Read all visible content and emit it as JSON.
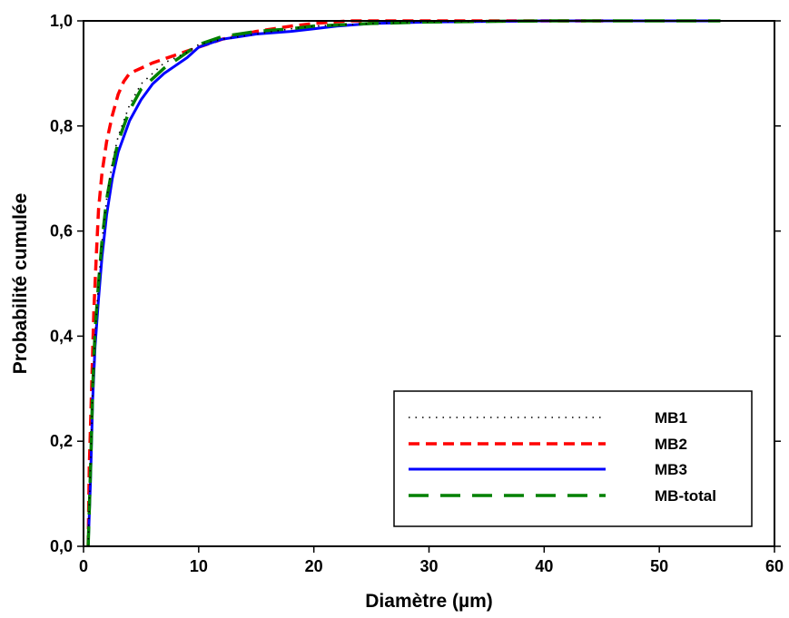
{
  "chart_data": {
    "type": "line",
    "title": "",
    "xlabel": "Diamètre (µm)",
    "ylabel": "Probabilité cumulée",
    "xlim": [
      0,
      60
    ],
    "ylim": [
      0,
      1.0
    ],
    "xticks": [
      0,
      10,
      20,
      30,
      40,
      50,
      60
    ],
    "yticks": [
      0,
      0.2,
      0.4,
      0.6,
      0.8,
      1.0
    ],
    "xtick_labels": [
      "0",
      "10",
      "20",
      "30",
      "40",
      "50",
      "60"
    ],
    "ytick_labels": [
      "0,0",
      "0,2",
      "0,4",
      "0,6",
      "0,8",
      "1,0"
    ],
    "grid": false,
    "legend_position": "bottom-right",
    "series": [
      {
        "name": "MB1",
        "color": "#000000",
        "style": "dotted",
        "x": [
          0.4,
          0.6,
          0.8,
          1.0,
          1.3,
          1.6,
          2.0,
          2.5,
          3.0,
          4.0,
          5.0,
          6.0,
          7.0,
          8.0,
          9.0,
          10.0,
          12.0,
          15.0,
          18.0,
          20.0,
          25.0,
          30.0,
          40.0,
          55.3
        ],
        "y": [
          0.0,
          0.15,
          0.3,
          0.4,
          0.5,
          0.58,
          0.66,
          0.73,
          0.78,
          0.84,
          0.88,
          0.9,
          0.92,
          0.93,
          0.94,
          0.955,
          0.965,
          0.975,
          0.985,
          0.99,
          0.995,
          0.998,
          1.0,
          1.0
        ]
      },
      {
        "name": "MB2",
        "color": "#ff0000",
        "style": "dashed",
        "x": [
          0.4,
          0.5,
          0.7,
          0.9,
          1.1,
          1.3,
          1.6,
          2.0,
          2.5,
          3.0,
          3.5,
          4.0,
          5.0,
          6.0,
          8.0,
          10.0,
          12.0,
          15.0,
          18.0,
          20.0,
          23.0,
          30.0,
          45.3
        ],
        "y": [
          0.0,
          0.15,
          0.3,
          0.45,
          0.55,
          0.64,
          0.71,
          0.77,
          0.82,
          0.86,
          0.885,
          0.9,
          0.91,
          0.92,
          0.935,
          0.95,
          0.965,
          0.98,
          0.99,
          0.995,
          1.0,
          1.0,
          1.0
        ]
      },
      {
        "name": "MB3",
        "color": "#0000ff",
        "style": "solid",
        "x": [
          0.4,
          0.6,
          0.8,
          1.0,
          1.3,
          1.6,
          2.0,
          2.5,
          3.0,
          4.0,
          5.0,
          6.0,
          7.0,
          8.0,
          9.0,
          10.0,
          12.0,
          15.0,
          18.0,
          20.0,
          22.0,
          25.0,
          30.0,
          40.0,
          55.3
        ],
        "y": [
          0.0,
          0.12,
          0.28,
          0.38,
          0.47,
          0.55,
          0.63,
          0.7,
          0.75,
          0.81,
          0.85,
          0.88,
          0.9,
          0.915,
          0.93,
          0.95,
          0.965,
          0.975,
          0.98,
          0.985,
          0.99,
          0.995,
          0.998,
          1.0,
          1.0
        ]
      },
      {
        "name": "MB-total",
        "color": "#008000",
        "style": "longdash",
        "x": [
          0.4,
          0.6,
          0.8,
          1.0,
          1.3,
          1.6,
          2.0,
          2.5,
          3.0,
          4.0,
          5.0,
          6.0,
          7.0,
          8.0,
          9.0,
          10.0,
          12.0,
          15.0,
          18.0,
          20.0,
          25.0,
          30.0,
          40.0,
          55.3
        ],
        "y": [
          0.0,
          0.14,
          0.3,
          0.41,
          0.5,
          0.58,
          0.66,
          0.72,
          0.77,
          0.83,
          0.87,
          0.89,
          0.91,
          0.925,
          0.94,
          0.955,
          0.97,
          0.98,
          0.985,
          0.99,
          0.995,
          0.998,
          1.0,
          1.0
        ]
      }
    ]
  }
}
